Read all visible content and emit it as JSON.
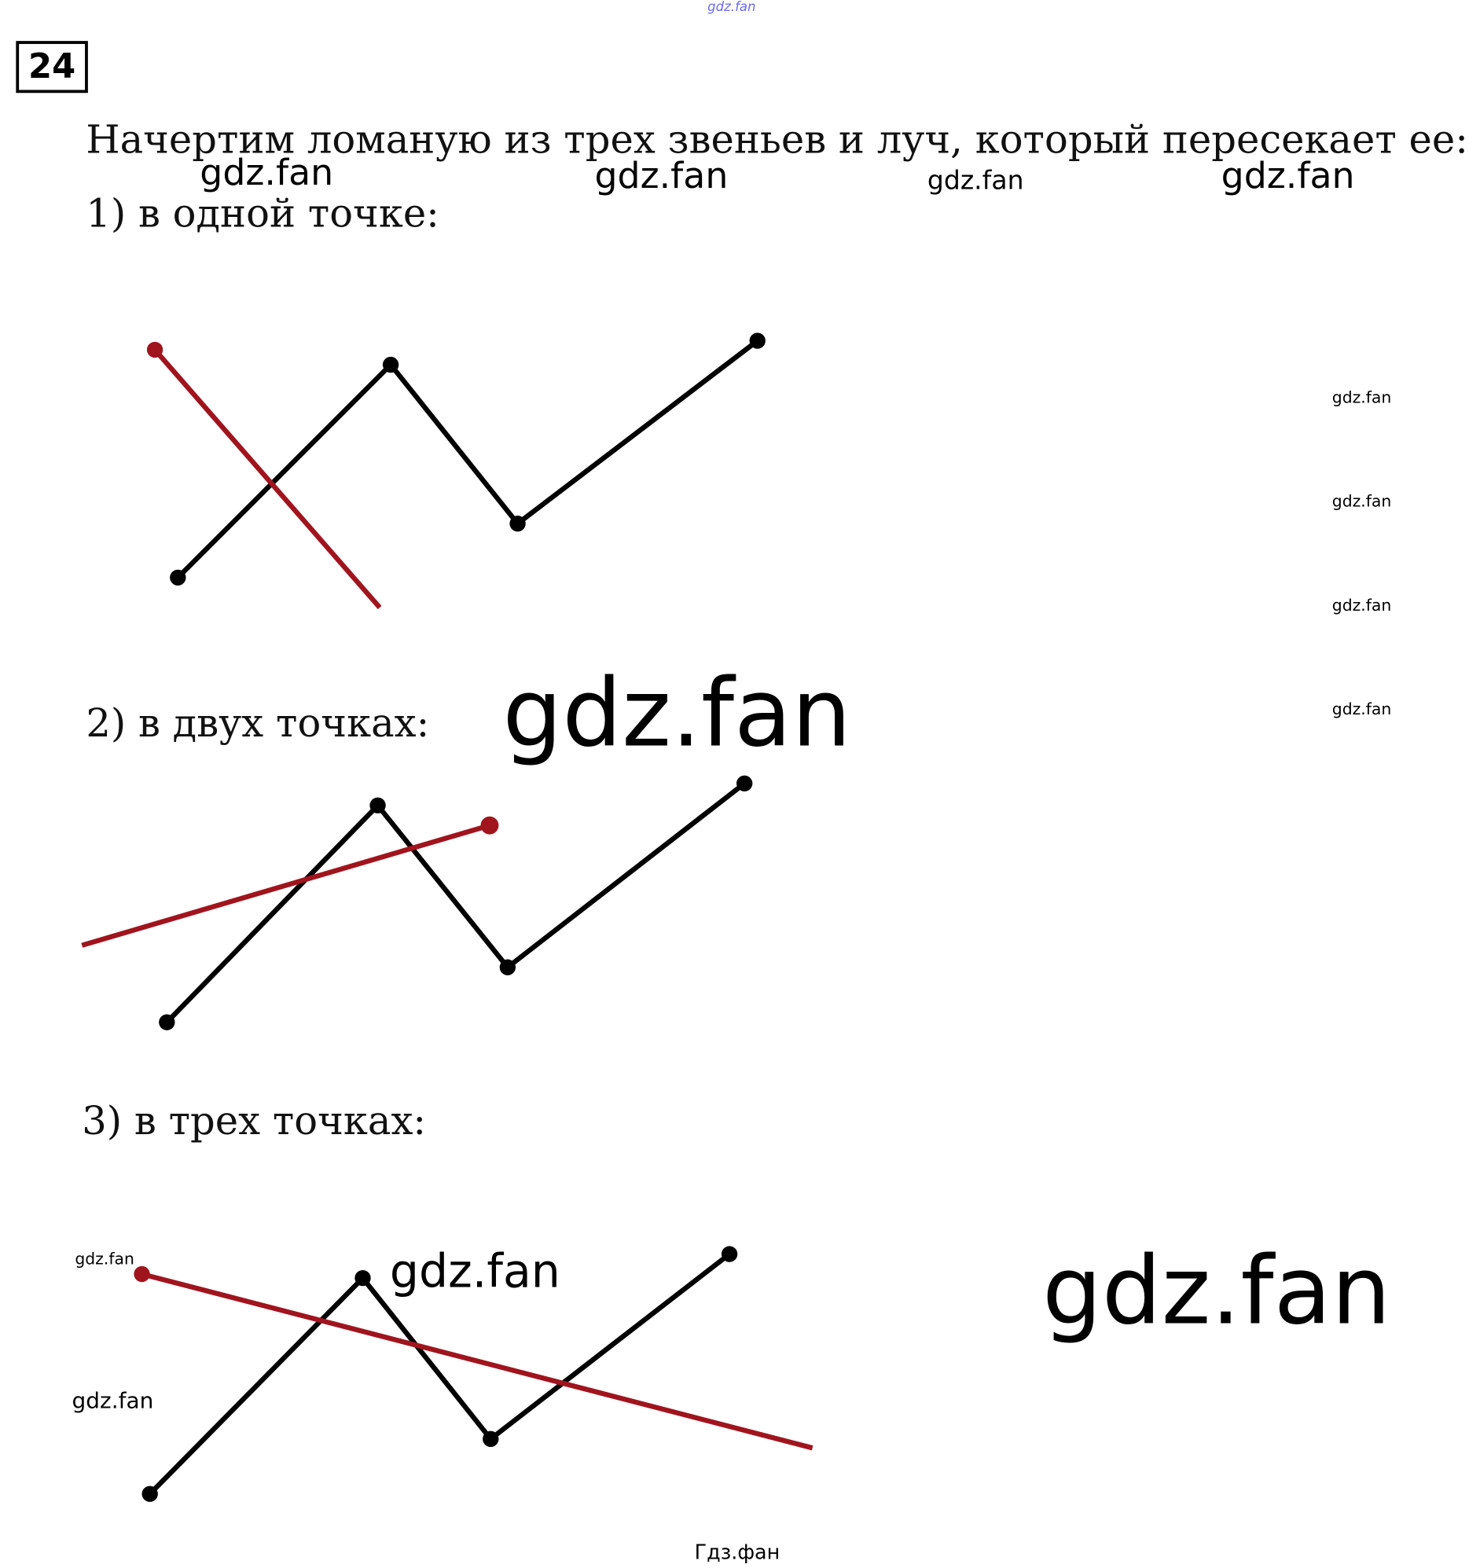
{
  "task_number": "24",
  "intro": "Начертим ломаную из трех звеньев и луч, который пересекает ее:",
  "cases": [
    {
      "label": "1) в одной точке:"
    },
    {
      "label": "2) в двух точках:"
    },
    {
      "label": "3) в трех точках:"
    }
  ],
  "watermarks": {
    "top": "gdz.fan",
    "w1": "gdz.fan",
    "w2": "gdz.fan",
    "w3": "gdz.fan",
    "w4": "gdz.fan",
    "side1": "gdz.fan",
    "side2": "gdz.fan",
    "side3": "gdz.fan",
    "side4": "gdz.fan",
    "big1": "gdz.fan",
    "big2": "gdz.fan",
    "fig3a": "gdz.fan",
    "fig3b": "gdz.fan",
    "fig3c": "gdz.fan",
    "bottom": "Гдз.фан"
  },
  "colors": {
    "polyline": "#000000",
    "ray": "#a0141e",
    "top_watermark": "#6a6af0"
  }
}
